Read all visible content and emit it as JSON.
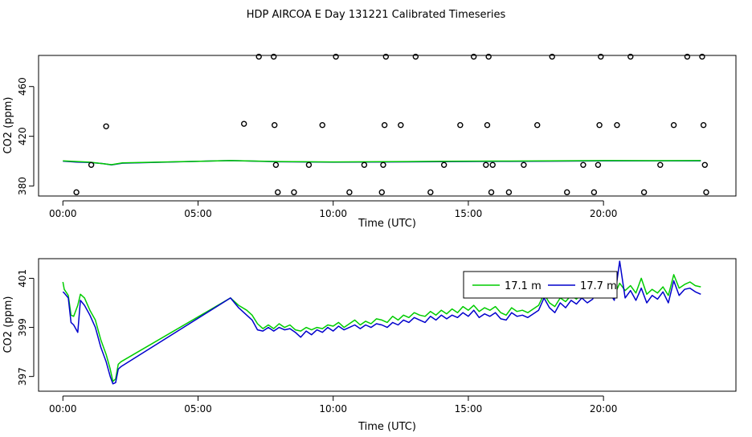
{
  "figure": {
    "title": "HDP AIRCOA E  Day 131221  Calibrated Timeseries"
  },
  "chart_data": [
    {
      "type": "scatter",
      "xlabel": "Time (UTC)",
      "ylabel": "CO2 (ppm)",
      "xlim": [
        -0.9,
        24.9
      ],
      "ylim": [
        372,
        485
      ],
      "x_ticks": [
        0,
        5,
        10,
        15,
        20
      ],
      "x_tick_labels": [
        "00:00",
        "05:00",
        "10:00",
        "15:00",
        "20:00"
      ],
      "y_ticks": [
        380,
        420,
        460
      ],
      "y_tick_labels": [
        "380",
        "420",
        "460"
      ],
      "grid": false,
      "series": [
        {
          "color": "#0000cc",
          "kind": "line",
          "x": [
            0,
            0.5,
            1.0,
            1.5,
            1.8,
            2.2,
            6.2,
            8,
            10,
            12,
            14,
            16,
            18,
            20,
            22,
            23.6
          ],
          "values": [
            400,
            399.3,
            399,
            398,
            397,
            398.4,
            400.5,
            399.5,
            399.2,
            399.4,
            399.6,
            399.8,
            400.0,
            400.3,
            400.2,
            400.3
          ]
        },
        {
          "color": "#00cc00",
          "kind": "line",
          "x": [
            0,
            1.0,
            1.8,
            2.2,
            6.2,
            8,
            10,
            12,
            14,
            16,
            18,
            20,
            22,
            23.6
          ],
          "values": [
            400.2,
            399.2,
            397.2,
            398.6,
            400.5,
            399.7,
            399.4,
            399.6,
            399.9,
            400.1,
            400.2,
            400.5,
            400.4,
            400.5
          ]
        },
        {
          "kind": "points",
          "color": "#000000",
          "x": [
            0.5,
            1.05,
            1.6,
            6.7,
            7.25,
            7.8,
            7.83,
            7.88,
            7.95,
            8.55,
            9.1,
            9.6,
            10.1,
            10.6,
            11.15,
            11.8,
            11.85,
            11.9,
            11.95,
            12.5,
            13.05,
            13.6,
            14.1,
            14.7,
            15.2,
            15.65,
            15.7,
            15.75,
            15.85,
            15.9,
            16.5,
            17.05,
            17.55,
            18.1,
            18.65,
            19.25,
            19.65,
            19.8,
            19.85,
            19.9,
            20.5,
            21.0,
            21.5,
            22.1,
            22.6,
            23.1,
            23.65,
            23.7,
            23.75,
            23.8
          ],
          "values": [
            375,
            397,
            428,
            430,
            484,
            484,
            429,
            397,
            375,
            375,
            397,
            429,
            484,
            375,
            397,
            375,
            397,
            429,
            484,
            429,
            484,
            375,
            397,
            429,
            484,
            397,
            429,
            484,
            375,
            397,
            375,
            397,
            429,
            484,
            375,
            397,
            375,
            397,
            429,
            484,
            429,
            484,
            375,
            397,
            429,
            484,
            484,
            429,
            397,
            375
          ]
        }
      ]
    },
    {
      "type": "line",
      "xlabel": "Time (UTC)",
      "ylabel": "CO2 (ppm)",
      "xlim": [
        -0.9,
        24.9
      ],
      "ylim": [
        396.4,
        401.8
      ],
      "x_ticks": [
        0,
        5,
        10,
        15,
        20
      ],
      "x_tick_labels": [
        "00:00",
        "05:00",
        "10:00",
        "15:00",
        "20:00"
      ],
      "y_ticks": [
        397,
        399,
        401
      ],
      "y_tick_labels": [
        "397",
        "399",
        "401"
      ],
      "grid": false,
      "legend_position": "top-right",
      "series": [
        {
          "name": "17.1 m",
          "color": "#00cc00",
          "x": [
            0,
            0.05,
            0.2,
            0.3,
            0.4,
            0.55,
            0.65,
            0.8,
            1.0,
            1.2,
            1.4,
            1.6,
            1.75,
            1.85,
            1.95,
            2.05,
            2.15,
            6.2,
            6.5,
            6.8,
            7.0,
            7.2,
            7.4,
            7.6,
            7.8,
            8.0,
            8.2,
            8.4,
            8.6,
            8.8,
            9.0,
            9.2,
            9.4,
            9.6,
            9.8,
            10.0,
            10.2,
            10.4,
            10.6,
            10.8,
            11.0,
            11.2,
            11.4,
            11.6,
            11.8,
            12.0,
            12.2,
            12.4,
            12.6,
            12.8,
            13.0,
            13.2,
            13.4,
            13.6,
            13.8,
            14.0,
            14.2,
            14.4,
            14.6,
            14.8,
            15.0,
            15.2,
            15.4,
            15.6,
            15.8,
            16.0,
            16.2,
            16.4,
            16.6,
            16.8,
            17.0,
            17.2,
            17.4,
            17.6,
            17.8,
            18.0,
            18.2,
            18.4,
            18.6,
            18.8,
            19.0,
            19.2,
            19.4,
            19.6,
            19.8,
            20.0,
            20.2,
            20.4,
            20.6,
            20.8,
            21.0,
            21.2,
            21.4,
            21.6,
            21.8,
            22.0,
            22.2,
            22.4,
            22.6,
            22.8,
            23.0,
            23.2,
            23.4,
            23.6
          ],
          "values": [
            400.85,
            400.55,
            400.3,
            399.5,
            399.45,
            399.9,
            400.35,
            400.2,
            399.7,
            399.3,
            398.5,
            397.9,
            397.3,
            396.8,
            396.9,
            397.5,
            397.6,
            400.2,
            399.9,
            399.7,
            399.5,
            399.15,
            398.95,
            399.1,
            398.95,
            399.15,
            399.0,
            399.1,
            398.9,
            398.85,
            399.0,
            398.9,
            399.0,
            398.95,
            399.1,
            399.05,
            399.2,
            399.0,
            399.15,
            399.3,
            399.1,
            399.25,
            399.15,
            399.35,
            399.3,
            399.2,
            399.45,
            399.3,
            399.5,
            399.4,
            399.6,
            399.5,
            399.45,
            399.65,
            399.5,
            399.7,
            399.55,
            399.75,
            399.6,
            399.85,
            399.7,
            399.9,
            399.65,
            399.8,
            399.7,
            399.85,
            399.6,
            399.5,
            399.8,
            399.65,
            399.7,
            399.6,
            399.75,
            399.9,
            400.35,
            400.0,
            399.85,
            400.2,
            400.05,
            400.3,
            400.15,
            400.4,
            400.2,
            400.35,
            401.2,
            400.6,
            400.7,
            400.3,
            400.8,
            400.5,
            400.7,
            400.4,
            401.0,
            400.35,
            400.55,
            400.4,
            400.65,
            400.3,
            401.15,
            400.6,
            400.75,
            400.85,
            400.7,
            400.65
          ]
        },
        {
          "name": "17.7 m",
          "color": "#0000cc",
          "x": [
            0,
            0.05,
            0.2,
            0.3,
            0.4,
            0.55,
            0.65,
            0.8,
            1.0,
            1.2,
            1.4,
            1.6,
            1.75,
            1.85,
            1.95,
            2.05,
            2.15,
            6.2,
            6.5,
            6.8,
            7.0,
            7.2,
            7.4,
            7.6,
            7.8,
            8.0,
            8.2,
            8.4,
            8.6,
            8.8,
            9.0,
            9.2,
            9.4,
            9.6,
            9.8,
            10.0,
            10.2,
            10.4,
            10.6,
            10.8,
            11.0,
            11.2,
            11.4,
            11.6,
            11.8,
            12.0,
            12.2,
            12.4,
            12.6,
            12.8,
            13.0,
            13.2,
            13.4,
            13.6,
            13.8,
            14.0,
            14.2,
            14.4,
            14.6,
            14.8,
            15.0,
            15.2,
            15.4,
            15.6,
            15.8,
            16.0,
            16.2,
            16.4,
            16.6,
            16.8,
            17.0,
            17.2,
            17.4,
            17.6,
            17.8,
            18.0,
            18.2,
            18.4,
            18.6,
            18.8,
            19.0,
            19.2,
            19.4,
            19.6,
            19.8,
            20.0,
            20.2,
            20.4,
            20.6,
            20.8,
            21.0,
            21.2,
            21.4,
            21.6,
            21.8,
            22.0,
            22.2,
            22.4,
            22.6,
            22.8,
            23.0,
            23.2,
            23.4,
            23.6
          ],
          "values": [
            400.45,
            400.4,
            400.2,
            399.2,
            399.1,
            398.8,
            400.1,
            399.9,
            399.5,
            399.0,
            398.2,
            397.6,
            397.0,
            396.7,
            396.75,
            397.3,
            397.4,
            400.2,
            399.8,
            399.5,
            399.3,
            398.9,
            398.85,
            399.0,
            398.85,
            399.0,
            398.9,
            398.95,
            398.8,
            398.6,
            398.85,
            398.7,
            398.9,
            398.8,
            399.0,
            398.85,
            399.05,
            398.9,
            399.0,
            399.1,
            398.95,
            399.1,
            399.0,
            399.15,
            399.1,
            399.0,
            399.2,
            399.1,
            399.3,
            399.2,
            399.4,
            399.3,
            399.2,
            399.45,
            399.3,
            399.5,
            399.35,
            399.5,
            399.4,
            399.6,
            399.45,
            399.7,
            399.4,
            399.55,
            399.45,
            399.6,
            399.35,
            399.3,
            399.6,
            399.45,
            399.5,
            399.4,
            399.55,
            399.7,
            400.2,
            399.8,
            399.6,
            400.0,
            399.8,
            400.1,
            399.95,
            400.2,
            400.0,
            400.15,
            400.7,
            400.3,
            400.45,
            400.1,
            401.7,
            400.2,
            400.5,
            400.1,
            400.6,
            400.0,
            400.3,
            400.15,
            400.45,
            400.0,
            400.9,
            400.3,
            400.55,
            400.6,
            400.45,
            400.35
          ]
        }
      ]
    }
  ]
}
